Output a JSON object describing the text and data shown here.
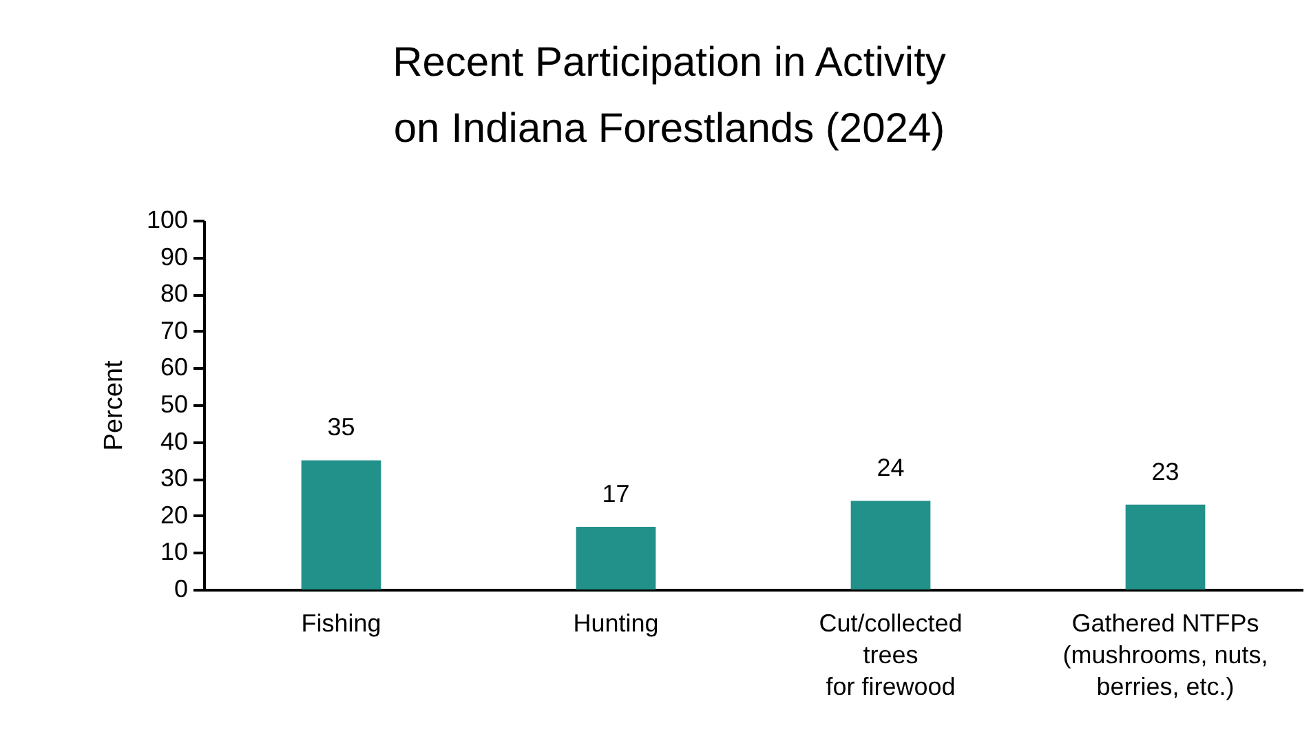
{
  "chart_data": {
    "type": "bar",
    "title": "Recent Participation in Activity\non Indiana Forestlands (2024)",
    "ylabel": "Percent",
    "categories": [
      "Fishing",
      "Hunting",
      "Cut/collected\ntrees\nfor firewood",
      "Gathered NTFPs\n(mushrooms, nuts,\nberries, etc.)"
    ],
    "values": [
      35,
      17,
      24,
      23
    ],
    "color": "#21918a",
    "ylim": [
      0,
      100
    ],
    "yticks": [
      0,
      10,
      20,
      30,
      40,
      50,
      60,
      70,
      80,
      90,
      100
    ],
    "grid": false,
    "data_labels": true
  }
}
